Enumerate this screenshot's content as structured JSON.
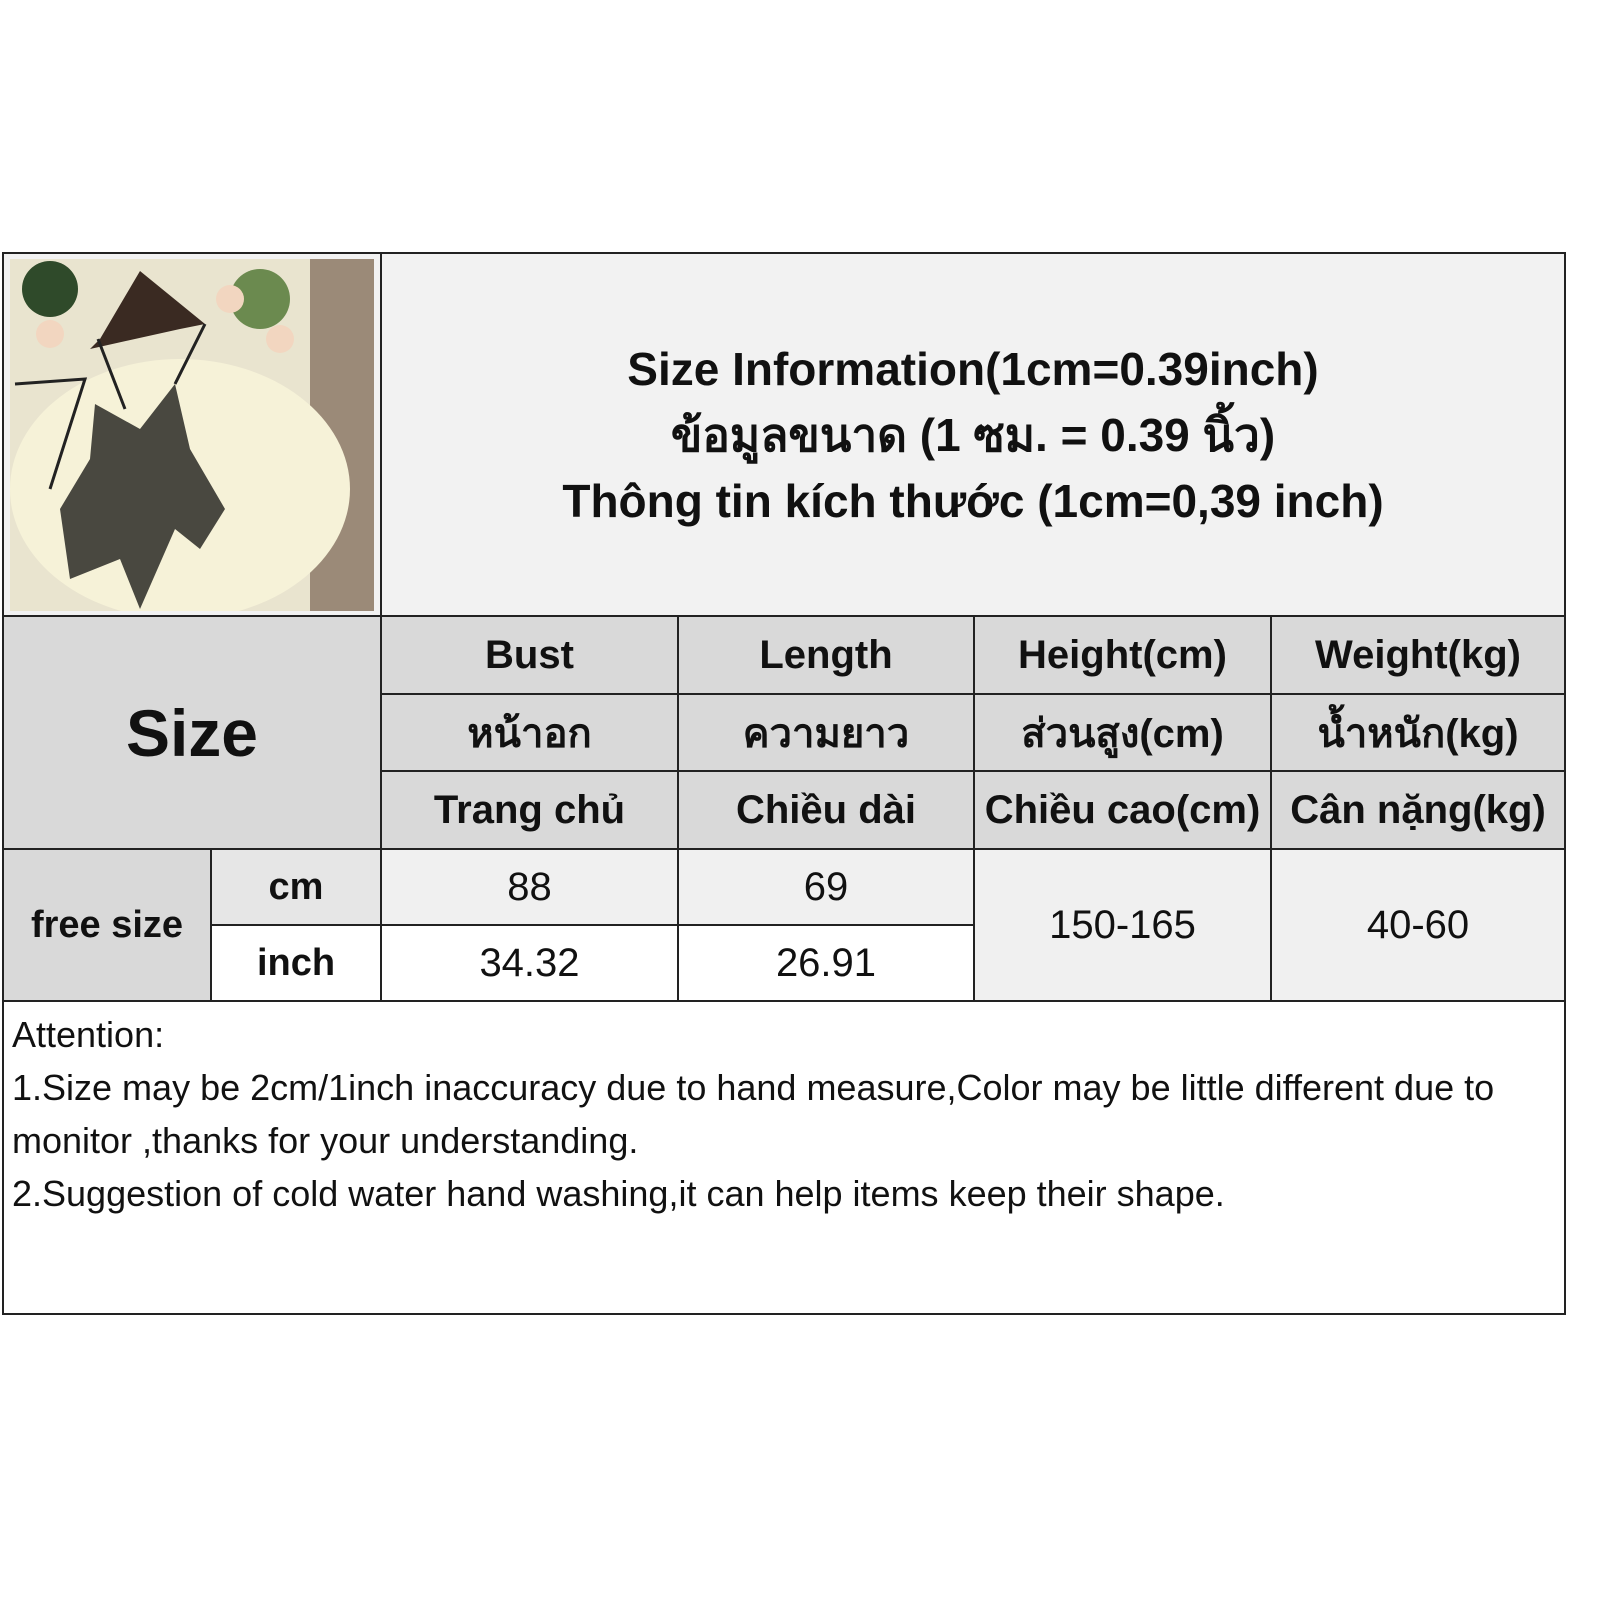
{
  "title": {
    "line_en": "Size Information(1cm=0.39inch)",
    "line_th": "ข้อมูลขนาด (1 ซม. = 0.39 นิ้ว)",
    "line_vi": "Thông tin kích thước (1cm=0,39 inch)"
  },
  "size_label": "Size",
  "columns": [
    {
      "en": "Bust",
      "th": "หน้าอก",
      "vi": "Trang chủ"
    },
    {
      "en": "Length",
      "th": "ความยาว",
      "vi": "Chiều dài"
    },
    {
      "en": "Height(cm)",
      "th": "ส่วนสูง(cm)",
      "vi": "Chiều cao(cm)"
    },
    {
      "en": "Weight(kg)",
      "th": "น้ำหนัก(kg)",
      "vi": "Cân nặng(kg)"
    }
  ],
  "row": {
    "size": "free size",
    "cm_label": "cm",
    "inch_label": "inch",
    "bust_cm": "88",
    "length_cm": "69",
    "bust_inch": "34.32",
    "length_inch": "26.91",
    "height": "150-165",
    "weight": "40-60"
  },
  "attention": {
    "heading": "Attention:",
    "line1": "1.Size may be 2cm/1inch inaccuracy due to hand measure,Color may be little different due to monitor ,thanks for your understanding.",
    "line2": "2.Suggestion of cold water hand washing,it can help items keep their shape."
  }
}
